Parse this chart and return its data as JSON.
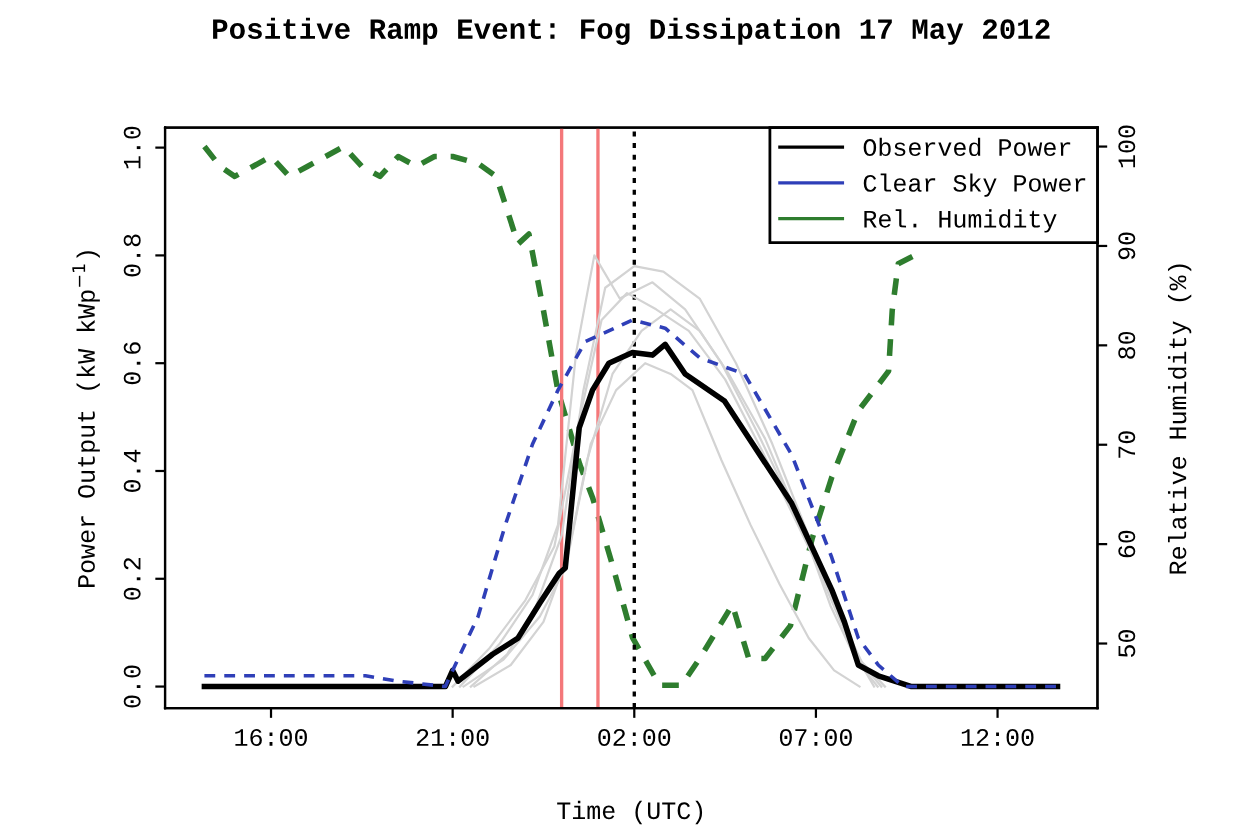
{
  "chart_data": {
    "type": "line",
    "title": "Positive Ramp Event: Fog Dissipation 17 May 2012",
    "xlabel": "Time (UTC)",
    "ylabel": "Power Output (kW kWp$^{−1}$)",
    "y2label": "Relative Humidity (%)",
    "xlim": [
      "2012-05-16T13:05",
      "2012-05-17T14:45"
    ],
    "xticks": [
      {
        "value": "2012-05-16T16:00",
        "label": "16:00"
      },
      {
        "value": "2012-05-16T21:00",
        "label": "21:00"
      },
      {
        "value": "2012-05-17T02:00",
        "label": "02:00"
      },
      {
        "value": "2012-05-17T07:00",
        "label": "07:00"
      },
      {
        "value": "2012-05-17T12:00",
        "label": "12:00"
      }
    ],
    "ylim": [
      -0.04,
      1.037
    ],
    "yticks": [
      {
        "value": 0,
        "label": "0.0"
      },
      0.2,
      0.4,
      0.6,
      0.8,
      {
        "value": 1,
        "label": "1.0"
      }
    ],
    "y2lim": [
      43.5,
      101.9
    ],
    "y2ticks": [
      50,
      60,
      70,
      80,
      90,
      100
    ],
    "grid": false,
    "legend": "top right",
    "series": [
      {
        "color": "#d3d3d3",
        "x": [
          "2012-05-16T21:30",
          "2012-05-16T22:30",
          "2012-05-16T23:18",
          "2012-05-17T00:00",
          "2012-05-17T00:36",
          "2012-05-17T01:12",
          "2012-05-17T02:00",
          "2012-05-17T02:48",
          "2012-05-17T03:48",
          "2012-05-17T04:48",
          "2012-05-17T05:48",
          "2012-05-17T06:48",
          "2012-05-17T07:36",
          "2012-05-17T08:18",
          "2012-05-17T08:48"
        ],
        "values": [
          0.0,
          0.06,
          0.15,
          0.28,
          0.55,
          0.74,
          0.78,
          0.77,
          0.72,
          0.6,
          0.45,
          0.28,
          0.14,
          0.04,
          0.0
        ]
      },
      {
        "color": "#d3d3d3",
        "x": [
          "2012-05-16T21:12",
          "2012-05-16T22:18",
          "2012-05-16T23:12",
          "2012-05-16T23:54",
          "2012-05-17T00:24",
          "2012-05-17T00:54",
          "2012-05-17T01:36",
          "2012-05-17T02:30",
          "2012-05-17T03:24",
          "2012-05-17T04:24",
          "2012-05-17T05:24",
          "2012-05-17T06:24",
          "2012-05-17T07:18",
          "2012-05-17T08:00",
          "2012-05-17T08:36"
        ],
        "values": [
          0.0,
          0.08,
          0.17,
          0.3,
          0.62,
          0.8,
          0.72,
          0.75,
          0.7,
          0.6,
          0.47,
          0.33,
          0.18,
          0.07,
          0.0
        ]
      },
      {
        "color": "#d3d3d3",
        "x": [
          "2012-05-16T21:18",
          "2012-05-16T22:24",
          "2012-05-16T23:24",
          "2012-05-17T00:06",
          "2012-05-17T00:42",
          "2012-05-17T01:24",
          "2012-05-17T02:12",
          "2012-05-17T03:00",
          "2012-05-17T03:48",
          "2012-05-17T04:36",
          "2012-05-17T05:36",
          "2012-05-17T06:36",
          "2012-05-17T07:24",
          "2012-05-17T08:06",
          "2012-05-17T08:42"
        ],
        "values": [
          0.0,
          0.05,
          0.13,
          0.22,
          0.42,
          0.58,
          0.66,
          0.7,
          0.66,
          0.58,
          0.46,
          0.3,
          0.15,
          0.05,
          0.0
        ]
      },
      {
        "color": "#d3d3d3",
        "x": [
          "2012-05-16T21:36",
          "2012-05-16T22:36",
          "2012-05-16T23:30",
          "2012-05-17T00:12",
          "2012-05-17T00:48",
          "2012-05-17T01:30",
          "2012-05-17T02:18",
          "2012-05-17T03:00",
          "2012-05-17T03:36",
          "2012-05-17T04:24",
          "2012-05-17T05:12",
          "2012-05-17T06:00",
          "2012-05-17T06:48",
          "2012-05-17T07:30",
          "2012-05-17T08:12"
        ],
        "values": [
          0.0,
          0.04,
          0.12,
          0.25,
          0.45,
          0.55,
          0.6,
          0.58,
          0.55,
          0.42,
          0.3,
          0.19,
          0.09,
          0.03,
          0.0
        ]
      },
      {
        "color": "#d3d3d3",
        "x": [
          "2012-05-16T21:00",
          "2012-05-16T22:00",
          "2012-05-16T23:00",
          "2012-05-16T23:48",
          "2012-05-17T00:30",
          "2012-05-17T01:06",
          "2012-05-17T01:48",
          "2012-05-17T02:36",
          "2012-05-17T03:30",
          "2012-05-17T04:30",
          "2012-05-17T05:30",
          "2012-05-17T06:30",
          "2012-05-17T07:30",
          "2012-05-17T08:12",
          "2012-05-17T08:54"
        ],
        "values": [
          0.0,
          0.07,
          0.16,
          0.26,
          0.5,
          0.68,
          0.73,
          0.7,
          0.66,
          0.57,
          0.44,
          0.3,
          0.16,
          0.05,
          0.0
        ]
      },
      {
        "name": "Observed Power",
        "color": "#000000",
        "line_style": "solid",
        "x": [
          "2012-05-16T14:10",
          "2012-05-16T20:48",
          "2012-05-16T21:00",
          "2012-05-16T21:09",
          "2012-05-16T22:06",
          "2012-05-16T22:48",
          "2012-05-16T23:24",
          "2012-05-16T23:56",
          "2012-05-17T00:06",
          "2012-05-17T00:29",
          "2012-05-17T00:51",
          "2012-05-17T01:18",
          "2012-05-17T01:57",
          "2012-05-17T02:30",
          "2012-05-17T02:51",
          "2012-05-17T03:24",
          "2012-05-17T04:29",
          "2012-05-17T06:20",
          "2012-05-17T07:26",
          "2012-05-17T07:47",
          "2012-05-17T08:10",
          "2012-05-17T08:43",
          "2012-05-17T09:38",
          "2012-05-17T13:39"
        ],
        "values": [
          0.0,
          0.0,
          0.03,
          0.01,
          0.06,
          0.09,
          0.155,
          0.21,
          0.22,
          0.48,
          0.55,
          0.6,
          0.62,
          0.615,
          0.635,
          0.58,
          0.53,
          0.34,
          0.18,
          0.12,
          0.04,
          0.02,
          0.0,
          0.0
        ]
      },
      {
        "name": "Clear Sky Power",
        "color": "#2f3fb8",
        "line_style": "dashed",
        "x": [
          "2012-05-16T14:10",
          "2012-05-16T18:36",
          "2012-05-16T19:30",
          "2012-05-16T20:48",
          "2012-05-16T21:00",
          "2012-05-16T21:42",
          "2012-05-16T22:27",
          "2012-05-16T23:12",
          "2012-05-16T23:54",
          "2012-05-17T00:39",
          "2012-05-17T01:57",
          "2012-05-17T02:51",
          "2012-05-17T03:48",
          "2012-05-17T05:02",
          "2012-05-17T06:20",
          "2012-05-17T07:26",
          "2012-05-17T08:10",
          "2012-05-17T08:43",
          "2012-05-17T09:24",
          "2012-05-17T13:39"
        ],
        "values": [
          0.02,
          0.02,
          0.01,
          0.0,
          0.03,
          0.13,
          0.3,
          0.45,
          0.55,
          0.64,
          0.68,
          0.665,
          0.61,
          0.58,
          0.43,
          0.24,
          0.09,
          0.04,
          0.0,
          0.0
        ]
      },
      {
        "name": "Rel. Humidity",
        "color": "#2e7d2e",
        "line_style": "dashed",
        "axis": "y2",
        "x": [
          "2012-05-16T14:10",
          "2012-05-16T14:36",
          "2012-05-16T15:00",
          "2012-05-16T15:30",
          "2012-05-16T16:00",
          "2012-05-16T16:30",
          "2012-05-16T17:00",
          "2012-05-16T17:30",
          "2012-05-16T18:00",
          "2012-05-16T18:30",
          "2012-05-16T19:00",
          "2012-05-16T19:30",
          "2012-05-16T20:00",
          "2012-05-16T20:30",
          "2012-05-16T21:00",
          "2012-05-16T21:42",
          "2012-05-16T22:12",
          "2012-05-16T22:48",
          "2012-05-16T23:06",
          "2012-05-16T23:30",
          "2012-05-16T23:54",
          "2012-05-17T00:30",
          "2012-05-17T00:51",
          "2012-05-17T01:24",
          "2012-05-17T01:57",
          "2012-05-17T02:42",
          "2012-05-17T03:18",
          "2012-05-17T03:48",
          "2012-05-17T04:42",
          "2012-05-17T05:09",
          "2012-05-17T05:36",
          "2012-05-17T06:18",
          "2012-05-17T06:54",
          "2012-05-17T07:26",
          "2012-05-17T08:10",
          "2012-05-17T09:00",
          "2012-05-17T09:06",
          "2012-05-17T09:16",
          "2012-05-17T09:48"
        ],
        "values": [
          100,
          98,
          97,
          98,
          99,
          97,
          98,
          99,
          100,
          98,
          97,
          99,
          98,
          99,
          99,
          98.3,
          97,
          90.2,
          91.2,
          83.5,
          75.4,
          68,
          64.7,
          57.9,
          50.6,
          45.8,
          45.8,
          48.5,
          53.9,
          48.5,
          48.5,
          51.8,
          60.6,
          66.7,
          73.4,
          77.4,
          83.5,
          88.2,
          89.2
        ]
      }
    ],
    "ref_lines": [
      {
        "axis": "x",
        "value": "2012-05-17T00:00",
        "color": "#f4787a",
        "line_style": "solid"
      },
      {
        "axis": "x",
        "value": "2012-05-17T01:00",
        "color": "#f4787a",
        "line_style": "solid"
      },
      {
        "axis": "x",
        "value": "2012-05-17T02:00",
        "color": "#000000",
        "line_style": "dotted"
      }
    ]
  }
}
